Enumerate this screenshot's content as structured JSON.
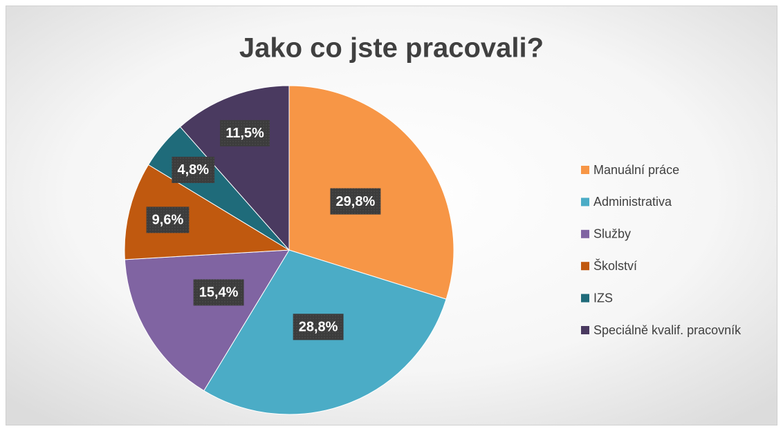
{
  "chart_data": {
    "type": "pie",
    "title": "Jako co jste pracovali?",
    "categories": [
      "Manuální práce",
      "Administrativa",
      "Služby",
      "Školství",
      "IZS",
      "Speciálně kvalif. pracovník"
    ],
    "values": [
      29.8,
      28.8,
      15.4,
      9.6,
      4.8,
      11.5
    ],
    "value_labels": [
      "29,8%",
      "28,8%",
      "15,4%",
      "9,6%",
      "4,8%",
      "11,5%"
    ],
    "colors": [
      "#f79646",
      "#4bacc6",
      "#8064a2",
      "#c0590f",
      "#1f6b7a",
      "#4a3a60"
    ],
    "legend": "right"
  }
}
